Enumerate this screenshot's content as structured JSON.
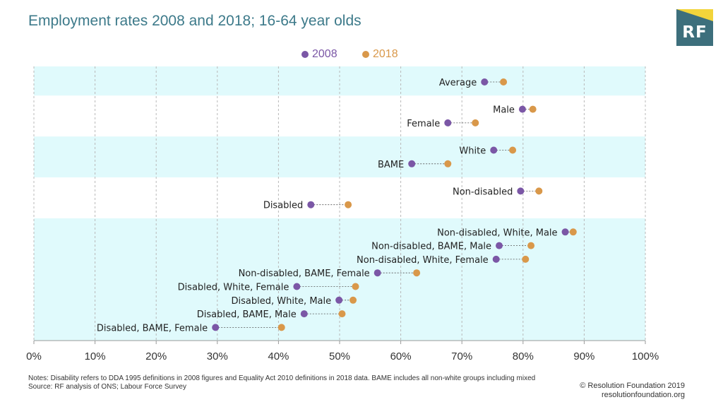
{
  "title": "Employment rates 2008 and 2018; 16-64 year olds",
  "logo": {
    "text": "RF"
  },
  "colors": {
    "series_2008": "#7b57a6",
    "series_2018": "#d9984a",
    "band": "#e0fafc",
    "title": "#3d7a8a"
  },
  "chart_data": {
    "type": "dumbbell",
    "title": "Employment rates 2008 and 2018; 16-64 year olds",
    "xlim": [
      0,
      100
    ],
    "x_ticks": [
      "0%",
      "10%",
      "20%",
      "30%",
      "40%",
      "50%",
      "60%",
      "70%",
      "80%",
      "90%",
      "100%"
    ],
    "grid": "vertical dashed",
    "legend_position": "top-center",
    "series": [
      {
        "name": "2008",
        "color": "#7b57a6"
      },
      {
        "name": "2018",
        "color": "#d9984a"
      }
    ],
    "groups": [
      {
        "rows": [
          {
            "label": "Average",
            "v2008": 73.7,
            "v2018": 76.8
          }
        ]
      },
      {
        "rows": [
          {
            "label": "Male",
            "v2008": 79.9,
            "v2018": 81.6
          },
          {
            "label": "Female",
            "v2008": 67.7,
            "v2018": 72.2
          }
        ]
      },
      {
        "rows": [
          {
            "label": "White",
            "v2008": 75.2,
            "v2018": 78.3
          },
          {
            "label": "BAME",
            "v2008": 61.8,
            "v2018": 67.7
          }
        ]
      },
      {
        "rows": [
          {
            "label": "Non-disabled",
            "v2008": 79.6,
            "v2018": 82.6
          },
          {
            "label": "Disabled",
            "v2008": 45.3,
            "v2018": 51.4
          }
        ]
      },
      {
        "rows": [
          {
            "label": "Non-disabled, White, Male",
            "v2008": 86.9,
            "v2018": 88.2
          },
          {
            "label": "Non-disabled, BAME, Male",
            "v2008": 76.1,
            "v2018": 81.3
          },
          {
            "label": "Non-disabled, White, Female",
            "v2008": 75.6,
            "v2018": 80.4
          },
          {
            "label": "Non-disabled, BAME, Female",
            "v2008": 56.2,
            "v2018": 62.6
          },
          {
            "label": "Disabled, White, Female",
            "v2008": 43.0,
            "v2018": 52.6
          },
          {
            "label": "Disabled, White, Male",
            "v2008": 49.9,
            "v2018": 52.2
          },
          {
            "label": "Disabled, BAME, Male",
            "v2008": 44.2,
            "v2018": 50.4
          },
          {
            "label": "Disabled, BAME, Female",
            "v2008": 29.7,
            "v2018": 40.5
          }
        ]
      }
    ]
  },
  "notes": {
    "line1": "Notes: Disability refers to DDA 1995 definitions in 2008 figures and Equality Act 2010 definitions in 2018 data. BAME includes all non-white groups including mixed",
    "line2": "Source: RF analysis of ONS; Labour Force Survey"
  },
  "credit": {
    "line1": "© Resolution Foundation 2019",
    "line2": "resolutionfoundation.org"
  }
}
